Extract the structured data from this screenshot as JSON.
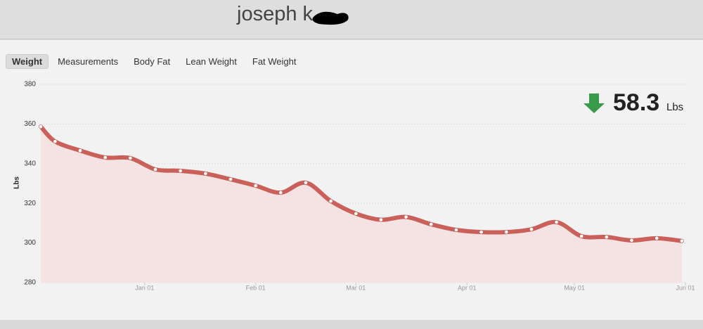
{
  "header": {
    "name": "joseph k"
  },
  "tabs": [
    "Weight",
    "Measurements",
    "Body Fat",
    "Lean Weight",
    "Fat Weight"
  ],
  "stat": {
    "value": "58.3",
    "unit": "Lbs"
  },
  "chart_data": {
    "type": "line",
    "ylabel": "Lbs",
    "x": [
      -29,
      -25,
      -18,
      -11,
      -4,
      3,
      10,
      17,
      24,
      31,
      38,
      45,
      52,
      59,
      66,
      73,
      80,
      87,
      94,
      101,
      108,
      115,
      122,
      129,
      136,
      143,
      150
    ],
    "series": [
      {
        "name": "Weight",
        "color": "#c9605a",
        "values": [
          358.7,
          351.2,
          346.6,
          343.1,
          342.8,
          337.1,
          336.4,
          335.0,
          332.1,
          328.9,
          325.4,
          330.4,
          321.1,
          314.8,
          311.7,
          313.1,
          309.4,
          306.6,
          305.5,
          305.5,
          306.9,
          310.5,
          303.4,
          303.0,
          301.3,
          302.4,
          301.0
        ]
      }
    ],
    "xlim": [
      -29,
      151
    ],
    "xticks": [
      {
        "value": 0,
        "label": "Jan 01"
      },
      {
        "value": 31,
        "label": "Feb 01"
      },
      {
        "value": 59,
        "label": "Mar 01"
      },
      {
        "value": 90,
        "label": "Apr 01"
      },
      {
        "value": 120,
        "label": "May 01"
      },
      {
        "value": 151,
        "label": "Jun 01"
      }
    ],
    "ylim": [
      280,
      380
    ],
    "yticks": [
      280,
      300,
      320,
      340,
      360,
      380
    ],
    "grid": true,
    "area_color": "#f5e3e3"
  }
}
